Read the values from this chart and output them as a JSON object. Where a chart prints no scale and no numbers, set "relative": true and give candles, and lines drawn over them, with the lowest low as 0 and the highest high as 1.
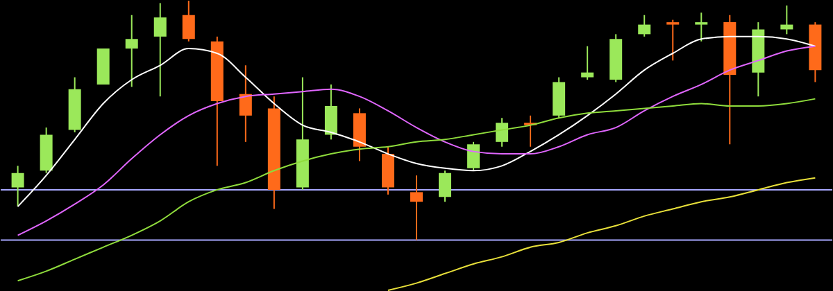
{
  "chart_data": {
    "type": "candlestick",
    "relative": true,
    "categories": [
      null,
      null,
      null,
      null,
      null,
      null,
      null,
      null,
      null,
      null,
      null,
      null,
      null,
      null,
      null,
      null,
      null,
      null,
      null,
      null,
      null,
      null,
      null,
      null,
      null,
      null,
      null,
      null,
      null
    ],
    "ohlc": [
      [
        0.22,
        0.31,
        0.14,
        0.28
      ],
      [
        0.29,
        0.47,
        0.28,
        0.44
      ],
      [
        0.46,
        0.68,
        0.45,
        0.63
      ],
      [
        0.65,
        0.8,
        0.65,
        0.8
      ],
      [
        0.8,
        0.94,
        0.64,
        0.84
      ],
      [
        0.85,
        0.99,
        0.6,
        0.93
      ],
      [
        0.94,
        1,
        0.83,
        0.84
      ],
      [
        0.83,
        0.85,
        0.31,
        0.58
      ],
      [
        0.61,
        0.73,
        0.41,
        0.52
      ],
      [
        0.55,
        0.6,
        0.13,
        0.21
      ],
      [
        0.22,
        0.68,
        0.21,
        0.42
      ],
      [
        0.44,
        0.65,
        0.42,
        0.56
      ],
      [
        0.53,
        0.55,
        0.33,
        0.39
      ],
      [
        0.36,
        0.39,
        0.19,
        0.22
      ],
      [
        0.2,
        0.27,
        0,
        0.16
      ],
      [
        0.18,
        0.29,
        0.16,
        0.28
      ],
      [
        0.3,
        0.41,
        0.29,
        0.4
      ],
      [
        0.41,
        0.51,
        0.39,
        0.49
      ],
      [
        0.49,
        0.52,
        0.39,
        0.48
      ],
      [
        0.52,
        0.68,
        0.51,
        0.66
      ],
      [
        0.68,
        0.81,
        0.67,
        0.7
      ],
      [
        0.67,
        0.86,
        0.66,
        0.84
      ],
      [
        0.86,
        0.94,
        0.85,
        0.9
      ],
      [
        0.91,
        0.92,
        0.75,
        0.9
      ],
      [
        0.9,
        0.95,
        0.83,
        0.91
      ],
      [
        0.91,
        0.94,
        0.4,
        0.69
      ],
      [
        0.7,
        0.91,
        0.6,
        0.88
      ],
      [
        0.88,
        0.98,
        0.86,
        0.9
      ],
      [
        0.9,
        0.91,
        0.66,
        0.71
      ]
    ],
    "colors": [
      "#9be85a",
      "#9be85a",
      "#9be85a",
      "#9be85a",
      "#9be85a",
      "#9be85a",
      "#ff6a1a",
      "#ff6a1a",
      "#ff6a1a",
      "#ff6a1a",
      "#9be85a",
      "#9be85a",
      "#ff6a1a",
      "#ff6a1a",
      "#ff6a1a",
      "#9be85a",
      "#9be85a",
      "#9be85a",
      "#ff6a1a",
      "#9be85a",
      "#9be85a",
      "#9be85a",
      "#9be85a",
      "#ff6a1a",
      "#9be85a",
      "#ff6a1a",
      "#9be85a",
      "#9be85a",
      "#ff6a1a"
    ],
    "series": [
      {
        "type": "line",
        "color": "#ffffff",
        "values": [
          0.14,
          0.27,
          0.42,
          0.57,
          0.67,
          0.73,
          0.8,
          0.78,
          0.68,
          0.57,
          0.48,
          0.45,
          0.41,
          0.36,
          0.32,
          0.3,
          0.29,
          0.31,
          0.37,
          0.44,
          0.52,
          0.61,
          0.71,
          0.78,
          0.84,
          0.85,
          0.85,
          0.84,
          0.81
        ]
      },
      {
        "type": "line",
        "color": "#e066ff",
        "values": [
          0.02,
          0.08,
          0.15,
          0.23,
          0.34,
          0.44,
          0.52,
          0.57,
          0.6,
          0.61,
          0.62,
          0.63,
          0.6,
          0.54,
          0.47,
          0.41,
          0.37,
          0.36,
          0.36,
          0.39,
          0.44,
          0.47,
          0.54,
          0.6,
          0.65,
          0.71,
          0.75,
          0.79,
          0.81
        ]
      },
      {
        "type": "line",
        "color": "#8fdc3c",
        "values": [
          -0.17,
          -0.13,
          -0.08,
          -0.03,
          0.02,
          0.08,
          0.16,
          0.21,
          0.24,
          0.29,
          0.33,
          0.36,
          0.38,
          0.39,
          0.41,
          0.42,
          0.44,
          0.46,
          0.48,
          0.51,
          0.53,
          0.54,
          0.55,
          0.56,
          0.57,
          0.56,
          0.56,
          0.57,
          0.59
        ]
      },
      {
        "type": "line",
        "color": "#e8e03a",
        "values": [
          null,
          null,
          null,
          null,
          null,
          null,
          null,
          null,
          null,
          null,
          null,
          null,
          null,
          -0.21,
          -0.18,
          -0.14,
          -0.1,
          -0.07,
          -0.03,
          -0.01,
          0.03,
          0.06,
          0.1,
          0.13,
          0.16,
          0.18,
          0.21,
          0.24,
          0.26
        ]
      }
    ],
    "ref_lines": [
      {
        "axis": "y",
        "value": 0.21,
        "color": "#a8a8ff"
      },
      {
        "axis": "y",
        "value": 0,
        "color": "#a8a8ff"
      }
    ]
  }
}
